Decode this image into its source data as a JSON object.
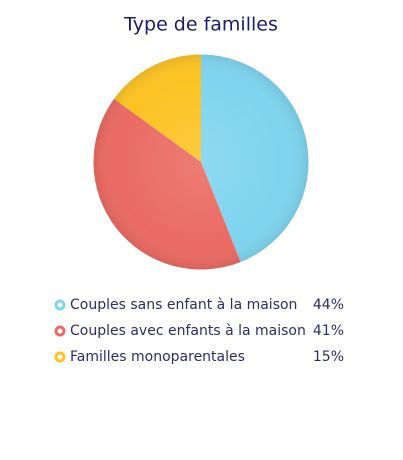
{
  "chart_data": {
    "type": "pie",
    "title": "Type de familles",
    "categories": [
      "Couples sans enfant à la maison",
      "Couples avec enfants à la maison",
      "Familles monoparentales"
    ],
    "values": [
      44,
      41,
      15
    ],
    "value_labels": [
      "44%",
      "41%",
      "15%"
    ],
    "colors": [
      "#7fd4ef",
      "#ea6b63",
      "#fdc324"
    ]
  }
}
